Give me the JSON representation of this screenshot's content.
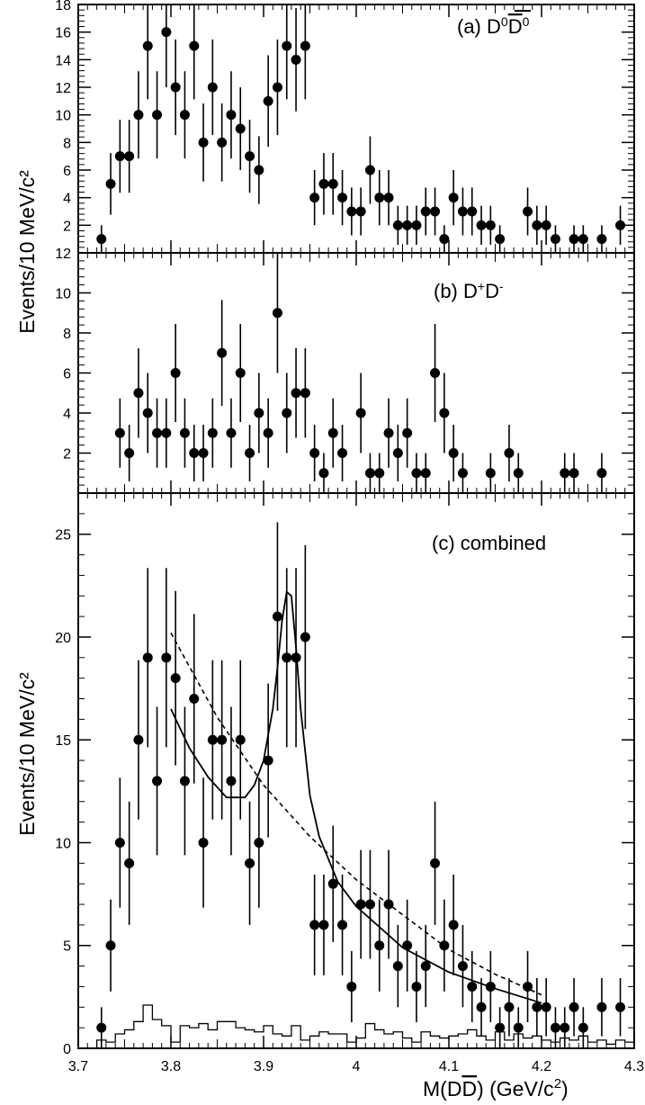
{
  "figure": {
    "xlabel": "M(D̅D̅) (GeV/c²)",
    "xlabel_parts": {
      "pre": "M(D",
      "bar": "D",
      "post": ") (GeV/c",
      "sup": "2",
      "close": ")"
    },
    "shared_ylabel": "Events/10 MeV/c²",
    "x_ticks": [
      "3.7",
      "3.8",
      "3.9",
      "4",
      "4.1",
      "4.2",
      "4.3"
    ],
    "xlim": [
      3.7,
      4.3
    ]
  },
  "chart_data": [
    {
      "type": "scatter",
      "panel": "a",
      "label_parts": {
        "pre": "(a) D",
        "sup1": "0",
        "bar": "D",
        "sup2": "0"
      },
      "title": "(a) D0 D̅0",
      "ylim": [
        0,
        18
      ],
      "y_ticks": [
        "2",
        "4",
        "6",
        "8",
        "10",
        "12",
        "14",
        "16",
        "18"
      ],
      "x": [
        3.725,
        3.735,
        3.745,
        3.755,
        3.765,
        3.775,
        3.785,
        3.795,
        3.805,
        3.815,
        3.825,
        3.835,
        3.845,
        3.855,
        3.865,
        3.875,
        3.885,
        3.895,
        3.905,
        3.915,
        3.925,
        3.935,
        3.945,
        3.955,
        3.965,
        3.975,
        3.985,
        3.995,
        4.005,
        4.015,
        4.025,
        4.035,
        4.045,
        4.055,
        4.065,
        4.075,
        4.085,
        4.095,
        4.105,
        4.115,
        4.125,
        4.135,
        4.145,
        4.155,
        4.185,
        4.195,
        4.205,
        4.215,
        4.235,
        4.245,
        4.265,
        4.285
      ],
      "y": [
        1,
        5,
        7,
        7,
        10,
        15,
        10,
        16,
        12,
        10,
        15,
        8,
        12,
        8,
        10,
        9,
        7,
        6,
        11,
        12,
        15,
        14,
        15,
        4,
        5,
        5,
        4,
        3,
        3,
        6,
        4,
        4,
        2,
        2,
        2,
        3,
        3,
        1,
        4,
        3,
        3,
        2,
        2,
        1,
        3,
        2,
        2,
        1,
        1,
        1,
        1,
        2
      ]
    },
    {
      "type": "scatter",
      "panel": "b",
      "label_parts": {
        "pre": "(b) D",
        "sup1": "+",
        "mid": "D",
        "sup2": "-"
      },
      "title": "(b) D+D-",
      "ylim": [
        0,
        12
      ],
      "y_ticks": [
        "2",
        "4",
        "6",
        "8",
        "10",
        "12"
      ],
      "x": [
        3.745,
        3.755,
        3.765,
        3.775,
        3.785,
        3.795,
        3.805,
        3.815,
        3.825,
        3.835,
        3.845,
        3.855,
        3.865,
        3.875,
        3.885,
        3.895,
        3.905,
        3.915,
        3.925,
        3.935,
        3.945,
        3.955,
        3.965,
        3.975,
        3.985,
        4.005,
        4.015,
        4.025,
        4.035,
        4.045,
        4.055,
        4.065,
        4.075,
        4.085,
        4.095,
        4.105,
        4.115,
        4.145,
        4.165,
        4.175,
        4.225,
        4.235,
        4.265
      ],
      "y": [
        3,
        2,
        5,
        4,
        3,
        3,
        6,
        3,
        2,
        2,
        3,
        7,
        3,
        6,
        2,
        4,
        3,
        9,
        4,
        5,
        5,
        2,
        1,
        3,
        2,
        4,
        1,
        1,
        3,
        2,
        3,
        1,
        1,
        6,
        4,
        2,
        1,
        1,
        2,
        1,
        1,
        1,
        1
      ]
    },
    {
      "type": "scatter",
      "panel": "c",
      "title": "(c) combined",
      "ylabel": "Events/10 MeV/c²",
      "ylim": [
        0,
        27
      ],
      "y_ticks": [
        "0",
        "5",
        "10",
        "15",
        "20",
        "25"
      ],
      "x": [
        3.725,
        3.735,
        3.745,
        3.755,
        3.765,
        3.775,
        3.785,
        3.795,
        3.805,
        3.815,
        3.825,
        3.835,
        3.845,
        3.855,
        3.865,
        3.875,
        3.885,
        3.895,
        3.905,
        3.915,
        3.925,
        3.935,
        3.945,
        3.955,
        3.965,
        3.975,
        3.985,
        3.995,
        4.005,
        4.015,
        4.025,
        4.035,
        4.045,
        4.055,
        4.065,
        4.075,
        4.085,
        4.095,
        4.105,
        4.115,
        4.125,
        4.135,
        4.145,
        4.155,
        4.165,
        4.175,
        4.185,
        4.195,
        4.205,
        4.215,
        4.225,
        4.235,
        4.245,
        4.265,
        4.285
      ],
      "y": [
        1,
        5,
        10,
        9,
        15,
        19,
        13,
        19,
        18,
        13,
        17,
        10,
        15,
        15,
        13,
        15,
        9,
        10,
        14,
        21,
        19,
        19,
        20,
        6,
        6,
        8,
        6,
        3,
        7,
        7,
        5,
        7,
        4,
        5,
        3,
        4,
        9,
        5,
        6,
        4,
        3,
        2,
        3,
        1,
        2,
        1,
        3,
        2,
        2,
        1,
        1,
        2,
        1,
        2,
        2
      ],
      "fit_curve": {
        "x": [
          3.8,
          3.82,
          3.84,
          3.86,
          3.88,
          3.89,
          3.9,
          3.91,
          3.915,
          3.92,
          3.925,
          3.93,
          3.935,
          3.94,
          3.95,
          3.96,
          3.98,
          4.0,
          4.05,
          4.1,
          4.15,
          4.2
        ],
        "y": [
          16.5,
          14.6,
          13.2,
          12.2,
          12.2,
          12.8,
          14.0,
          16.5,
          18.5,
          20.8,
          22.2,
          22.0,
          19.5,
          16.5,
          12.3,
          10.3,
          8.1,
          6.9,
          4.9,
          3.7,
          2.9,
          2.2
        ]
      },
      "background_curve": {
        "x": [
          3.8,
          3.85,
          3.9,
          3.95,
          4.0,
          4.05,
          4.1,
          4.15,
          4.2
        ],
        "y": [
          20.2,
          16.1,
          12.8,
          10.3,
          8.2,
          6.5,
          4.8,
          3.6,
          2.6
        ]
      },
      "histogram": {
        "bin_edges": [
          3.72,
          3.73,
          3.74,
          3.75,
          3.76,
          3.77,
          3.78,
          3.79,
          3.8,
          3.81,
          3.82,
          3.83,
          3.84,
          3.85,
          3.86,
          3.87,
          3.88,
          3.89,
          3.9,
          3.91,
          3.92,
          3.93,
          3.94,
          3.95,
          3.96,
          3.97,
          3.98,
          3.99,
          4.0,
          4.01,
          4.02,
          4.03,
          4.04,
          4.05,
          4.06,
          4.07,
          4.08,
          4.09,
          4.1,
          4.11,
          4.12,
          4.13,
          4.14,
          4.15,
          4.16,
          4.17,
          4.18,
          4.19,
          4.2,
          4.21,
          4.22,
          4.23,
          4.24,
          4.25,
          4.26,
          4.27,
          4.28,
          4.29,
          4.3
        ],
        "counts": [
          0.4,
          0.3,
          0.7,
          0.9,
          1.3,
          2.1,
          1.4,
          1.1,
          0.3,
          1.1,
          1.0,
          1.2,
          0.9,
          1.3,
          1.3,
          1.0,
          0.9,
          0.8,
          1.1,
          0.7,
          0.6,
          1.1,
          0.4,
          0.6,
          0.8,
          0.7,
          0.7,
          0.3,
          0.5,
          1.2,
          0.9,
          0.7,
          0.8,
          0.5,
          0.3,
          0.8,
          0.6,
          0.5,
          0.6,
          0.7,
          0.9,
          0.6,
          0.4,
          0.8,
          0.4,
          0.7,
          0.5,
          0.6,
          0.4,
          0.3,
          0.5,
          0.4,
          0.6,
          0.3,
          0.4,
          0.2,
          0.4,
          0.3
        ]
      }
    }
  ]
}
